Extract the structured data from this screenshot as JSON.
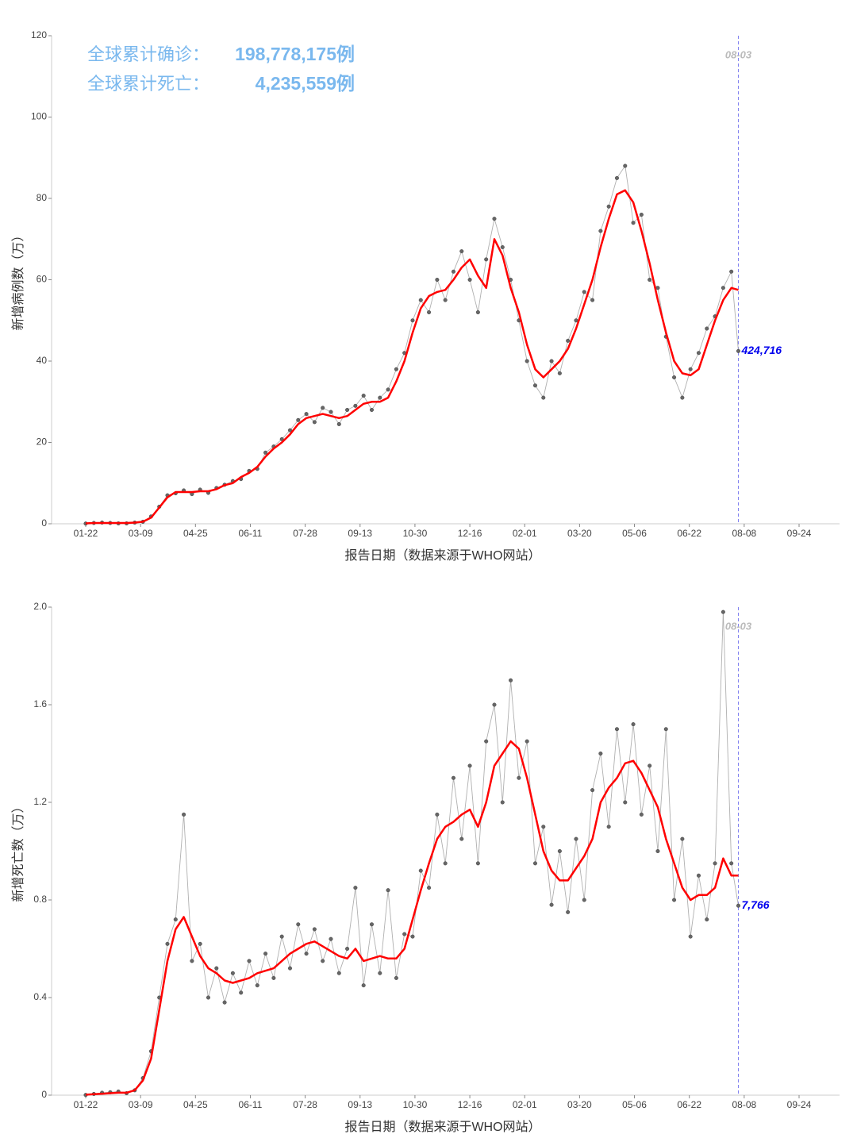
{
  "chart_data": [
    {
      "type": "line",
      "ylabel": "新增病例数（万）",
      "xlabel": "报告日期（数据来源于WHO网站）",
      "annotations": [
        {
          "label": "全球累计确诊：",
          "text": "198,778,175例"
        },
        {
          "label": "全球累计死亡：",
          "text": "4,235,559例"
        }
      ],
      "vline": {
        "x": "08-03",
        "color": "#8080f0"
      },
      "x": [
        "01-22",
        "01-29",
        "02-05",
        "02-12",
        "02-19",
        "02-26",
        "03-04",
        "03-11",
        "03-18",
        "03-25",
        "04-01",
        "04-08",
        "04-15",
        "04-22",
        "04-29",
        "05-06",
        "05-13",
        "05-20",
        "05-27",
        "06-03",
        "06-10",
        "06-17",
        "06-24",
        "07-01",
        "07-08",
        "07-15",
        "07-22",
        "07-29",
        "08-05",
        "08-12",
        "08-19",
        "08-26",
        "09-02",
        "09-09",
        "09-16",
        "09-23",
        "09-30",
        "10-07",
        "10-14",
        "10-21",
        "10-28",
        "11-04",
        "11-11",
        "11-18",
        "11-25",
        "12-02",
        "12-09",
        "12-16",
        "12-23",
        "12-30",
        "01-06",
        "01-13",
        "01-20",
        "01-27",
        "02-03",
        "02-10",
        "02-17",
        "02-24",
        "03-03",
        "03-10",
        "03-17",
        "03-24",
        "03-31",
        "04-07",
        "04-14",
        "04-21",
        "04-28",
        "05-05",
        "05-12",
        "05-19",
        "05-26",
        "06-02",
        "06-09",
        "06-16",
        "06-23",
        "06-30",
        "07-07",
        "07-14",
        "07-21",
        "07-28",
        "08-03"
      ],
      "xticks": [
        "01-22",
        "03-09",
        "04-25",
        "06-11",
        "07-28",
        "09-13",
        "10-30",
        "12-16",
        "02-01",
        "03-20",
        "05-06",
        "06-22",
        "08-08",
        "09-24"
      ],
      "ylim": [
        0,
        120
      ],
      "yticks": [
        0,
        20,
        40,
        60,
        80,
        100,
        120
      ],
      "series": [
        {
          "color": "#666666",
          "label_color": "#0000ee",
          "values": [
            0.06,
            0.2,
            0.3,
            0.2,
            0.1,
            0.1,
            0.3,
            0.5,
            1.8,
            4.2,
            7.0,
            7.5,
            8.2,
            7.3,
            8.4,
            7.6,
            8.8,
            9.6,
            10.5,
            11.0,
            13.0,
            13.5,
            17.5,
            19.0,
            20.8,
            23.0,
            25.5,
            27.0,
            25.0,
            28.5,
            27.5,
            24.5,
            28.0,
            29.0,
            31.5,
            28.0,
            31.0,
            33.0,
            38.0,
            42.0,
            50.0,
            55.0,
            52.0,
            60.0,
            55.0,
            62.0,
            67.0,
            60.0,
            52.0,
            65.0,
            75.0,
            68.0,
            60.0,
            50.0,
            40.0,
            34.0,
            31.0,
            40.0,
            37.0,
            45.0,
            50.0,
            57.0,
            55.0,
            72.0,
            78.0,
            85.0,
            88.0,
            74.0,
            76.0,
            60.0,
            58.0,
            46.0,
            36.0,
            31.0,
            38.0,
            42.0,
            48.0,
            51.0,
            58.0,
            62.0,
            42.4716
          ],
          "value_labels": [
            null,
            null,
            null,
            null,
            null,
            null,
            null,
            null,
            null,
            null,
            null,
            null,
            null,
            null,
            null,
            null,
            null,
            null,
            null,
            null,
            null,
            null,
            null,
            null,
            null,
            null,
            null,
            null,
            null,
            null,
            null,
            null,
            null,
            null,
            null,
            null,
            null,
            null,
            null,
            null,
            null,
            null,
            null,
            null,
            null,
            null,
            null,
            null,
            null,
            null,
            null,
            null,
            null,
            null,
            null,
            null,
            null,
            null,
            null,
            null,
            null,
            null,
            null,
            null,
            null,
            null,
            null,
            null,
            null,
            null,
            null,
            null,
            null,
            null,
            null,
            null,
            null,
            null,
            null,
            null,
            "424,716"
          ]
        },
        {
          "color": "#ff0000",
          "values": [
            0.1,
            0.2,
            0.2,
            0.2,
            0.2,
            0.2,
            0.3,
            0.5,
            1.5,
            4,
            6.5,
            7.8,
            7.8,
            7.8,
            8,
            8,
            8.5,
            9.5,
            10,
            11.5,
            12.5,
            14,
            16.5,
            18.5,
            20,
            22,
            24.5,
            26,
            26.5,
            27,
            26.5,
            26,
            26.5,
            28,
            29.5,
            30,
            30,
            31,
            35,
            40,
            47,
            53,
            56,
            57,
            57.5,
            60,
            63,
            65,
            61,
            58,
            70,
            66,
            58,
            52,
            44,
            38,
            36,
            38,
            40,
            43,
            48,
            54,
            60,
            68,
            75,
            81,
            82,
            79,
            72,
            64,
            55,
            47,
            40,
            37,
            36.5,
            38,
            44,
            50,
            55,
            58,
            57.5
          ]
        }
      ]
    },
    {
      "type": "line",
      "ylabel": "新增死亡数（万）",
      "xlabel": "报告日期（数据来源于WHO网站）",
      "vline": {
        "x": "08-03",
        "color": "#8080f0"
      },
      "x": [
        "01-22",
        "01-29",
        "02-05",
        "02-12",
        "02-19",
        "02-26",
        "03-04",
        "03-11",
        "03-18",
        "03-25",
        "04-01",
        "04-08",
        "04-15",
        "04-22",
        "04-29",
        "05-06",
        "05-13",
        "05-20",
        "05-27",
        "06-03",
        "06-10",
        "06-17",
        "06-24",
        "07-01",
        "07-08",
        "07-15",
        "07-22",
        "07-29",
        "08-05",
        "08-12",
        "08-19",
        "08-26",
        "09-02",
        "09-09",
        "09-16",
        "09-23",
        "09-30",
        "10-07",
        "10-14",
        "10-21",
        "10-28",
        "11-04",
        "11-11",
        "11-18",
        "11-25",
        "12-02",
        "12-09",
        "12-16",
        "12-23",
        "12-30",
        "01-06",
        "01-13",
        "01-20",
        "01-27",
        "02-03",
        "02-10",
        "02-17",
        "02-24",
        "03-03",
        "03-10",
        "03-17",
        "03-24",
        "03-31",
        "04-07",
        "04-14",
        "04-21",
        "04-28",
        "05-05",
        "05-12",
        "05-19",
        "05-26",
        "06-02",
        "06-09",
        "06-16",
        "06-23",
        "06-30",
        "07-07",
        "07-14",
        "07-21",
        "07-28",
        "08-03"
      ],
      "xticks": [
        "01-22",
        "03-09",
        "04-25",
        "06-11",
        "07-28",
        "09-13",
        "10-30",
        "12-16",
        "02-01",
        "03-20",
        "05-06",
        "06-22",
        "08-08",
        "09-24"
      ],
      "ylim": [
        0,
        2
      ],
      "yticks": [
        0,
        {
          "value": 0.4,
          "label": "0.4"
        },
        {
          "value": 0.8,
          "label": "0.8"
        },
        {
          "value": 1.2,
          "label": "1.2"
        },
        {
          "value": 1.6,
          "label": "1.6"
        },
        {
          "value": 2,
          "label": "2.0"
        }
      ],
      "series": [
        {
          "color": "#666666",
          "label_color": "#0000ee",
          "values": [
            0.001,
            0.005,
            0.01,
            0.012,
            0.015,
            0.008,
            0.02,
            0.07,
            0.18,
            0.4,
            0.62,
            0.72,
            1.15,
            0.55,
            0.62,
            0.4,
            0.52,
            0.38,
            0.5,
            0.42,
            0.55,
            0.45,
            0.58,
            0.48,
            0.65,
            0.52,
            0.7,
            0.58,
            0.68,
            0.55,
            0.64,
            0.5,
            0.6,
            0.85,
            0.45,
            0.7,
            0.5,
            0.84,
            0.48,
            0.66,
            0.65,
            0.92,
            0.85,
            1.15,
            0.95,
            1.3,
            1.05,
            1.35,
            0.95,
            1.45,
            1.6,
            1.2,
            1.7,
            1.3,
            1.45,
            0.95,
            1.1,
            0.78,
            1.0,
            0.75,
            1.05,
            0.8,
            1.25,
            1.4,
            1.1,
            1.5,
            1.2,
            1.52,
            1.15,
            1.35,
            1.0,
            1.5,
            0.8,
            1.05,
            0.65,
            0.9,
            0.72,
            0.95,
            1.98,
            0.95,
            0.7766
          ],
          "value_labels": [
            null,
            null,
            null,
            null,
            null,
            null,
            null,
            null,
            null,
            null,
            null,
            null,
            null,
            null,
            null,
            null,
            null,
            null,
            null,
            null,
            null,
            null,
            null,
            null,
            null,
            null,
            null,
            null,
            null,
            null,
            null,
            null,
            null,
            null,
            null,
            null,
            null,
            null,
            null,
            null,
            null,
            null,
            null,
            null,
            null,
            null,
            null,
            null,
            null,
            null,
            null,
            null,
            null,
            null,
            null,
            null,
            null,
            null,
            null,
            null,
            null,
            null,
            null,
            null,
            null,
            null,
            null,
            null,
            null,
            null,
            null,
            null,
            null,
            null,
            null,
            null,
            null,
            null,
            null,
            null,
            "7,766"
          ]
        },
        {
          "color": "#ff0000",
          "values": [
            0.002,
            0.004,
            0.006,
            0.008,
            0.01,
            0.01,
            0.02,
            0.06,
            0.15,
            0.35,
            0.55,
            0.68,
            0.73,
            0.65,
            0.57,
            0.52,
            0.5,
            0.47,
            0.46,
            0.47,
            0.48,
            0.5,
            0.51,
            0.52,
            0.55,
            0.58,
            0.6,
            0.62,
            0.63,
            0.61,
            0.59,
            0.57,
            0.56,
            0.6,
            0.55,
            0.56,
            0.57,
            0.56,
            0.56,
            0.6,
            0.72,
            0.84,
            0.95,
            1.05,
            1.1,
            1.12,
            1.15,
            1.17,
            1.1,
            1.2,
            1.35,
            1.4,
            1.45,
            1.42,
            1.3,
            1.15,
            1.0,
            0.92,
            0.88,
            0.88,
            0.93,
            0.98,
            1.05,
            1.2,
            1.26,
            1.3,
            1.36,
            1.37,
            1.32,
            1.25,
            1.18,
            1.05,
            0.95,
            0.85,
            0.8,
            0.82,
            0.82,
            0.85,
            0.97,
            0.9,
            0.9
          ]
        }
      ]
    }
  ]
}
